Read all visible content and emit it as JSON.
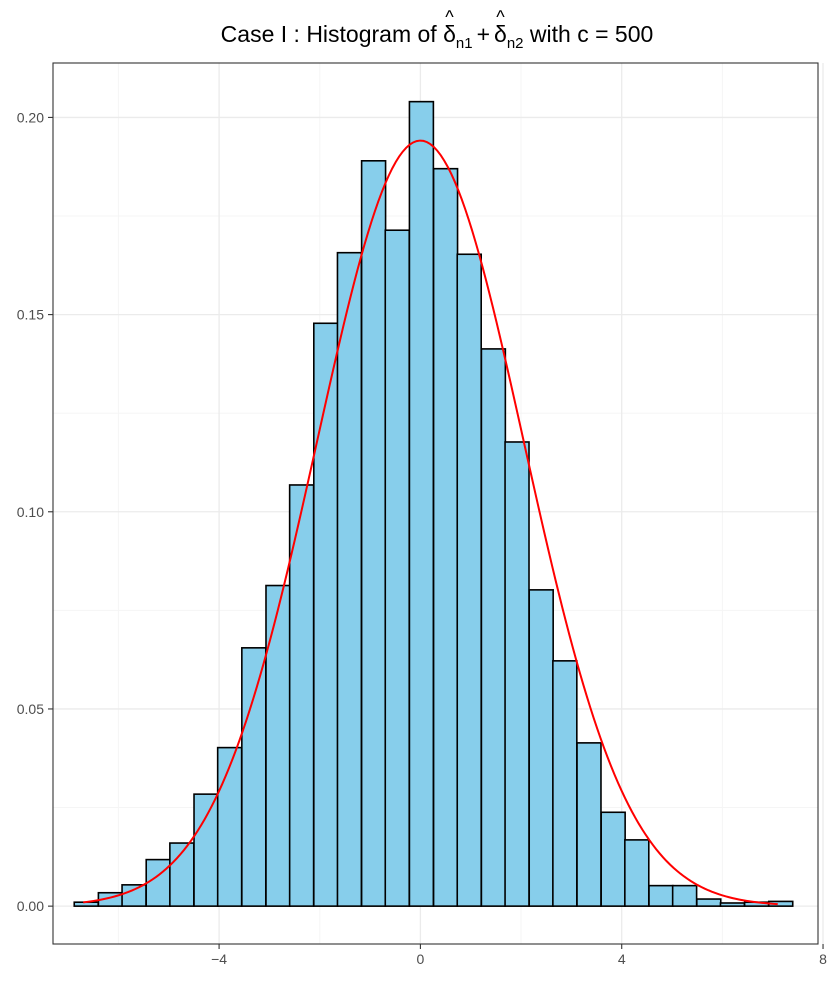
{
  "chart_data": {
    "type": "bar",
    "title": {
      "prefix": "Case I : Histogram of ",
      "symbol": "δ",
      "hat": "^",
      "sub1": "n1",
      "plus": "+",
      "sub2": "n2",
      "suffix": " with c = 500"
    },
    "xlabel": "",
    "ylabel": "",
    "xlim": [
      -7.3,
      7.9
    ],
    "ylim": [
      -0.0096,
      0.2138
    ],
    "x_ticks": [
      -4,
      0,
      4,
      8
    ],
    "x_tick_labels": [
      "−4",
      "0",
      "4",
      "8"
    ],
    "y_ticks": [
      0.0,
      0.05,
      0.1,
      0.15,
      0.2
    ],
    "y_tick_labels": [
      "0.00",
      "0.05",
      "0.10",
      "0.15",
      "0.20"
    ],
    "grid": true,
    "bin_width": 0.476,
    "bins": [
      {
        "x": -6.64,
        "y": 0.001
      },
      {
        "x": -6.16,
        "y": 0.0034
      },
      {
        "x": -5.69,
        "y": 0.0054
      },
      {
        "x": -5.21,
        "y": 0.0118
      },
      {
        "x": -4.74,
        "y": 0.016
      },
      {
        "x": -4.26,
        "y": 0.0284
      },
      {
        "x": -3.79,
        "y": 0.0402
      },
      {
        "x": -3.31,
        "y": 0.0655
      },
      {
        "x": -2.83,
        "y": 0.0813
      },
      {
        "x": -2.36,
        "y": 0.1068
      },
      {
        "x": -1.88,
        "y": 0.1478
      },
      {
        "x": -1.41,
        "y": 0.1657
      },
      {
        "x": -0.93,
        "y": 0.189
      },
      {
        "x": -0.46,
        "y": 0.1714
      },
      {
        "x": 0.02,
        "y": 0.204
      },
      {
        "x": 0.5,
        "y": 0.187
      },
      {
        "x": 0.97,
        "y": 0.1653
      },
      {
        "x": 1.45,
        "y": 0.1413
      },
      {
        "x": 1.92,
        "y": 0.1177
      },
      {
        "x": 2.4,
        "y": 0.0802
      },
      {
        "x": 2.87,
        "y": 0.0622
      },
      {
        "x": 3.35,
        "y": 0.0414
      },
      {
        "x": 3.83,
        "y": 0.0238
      },
      {
        "x": 4.3,
        "y": 0.0168
      },
      {
        "x": 4.78,
        "y": 0.0052
      },
      {
        "x": 5.25,
        "y": 0.0052
      },
      {
        "x": 5.73,
        "y": 0.0018
      },
      {
        "x": 6.2,
        "y": 0.0008
      },
      {
        "x": 6.68,
        "y": 0.001
      },
      {
        "x": 7.16,
        "y": 0.0012
      }
    ],
    "density_curve": {
      "type": "normal",
      "mean": 0.0,
      "sd": 2.055,
      "x_range": [
        -6.7,
        7.1
      ]
    },
    "colors": {
      "bar_fill": "#87CEEB",
      "bar_stroke": "#000000",
      "curve": "#FF0000",
      "grid_major": "#EBEBEB",
      "grid_minor": "#F5F5F5",
      "panel_border": "#333333",
      "axis_text": "#4D4D4D"
    }
  }
}
